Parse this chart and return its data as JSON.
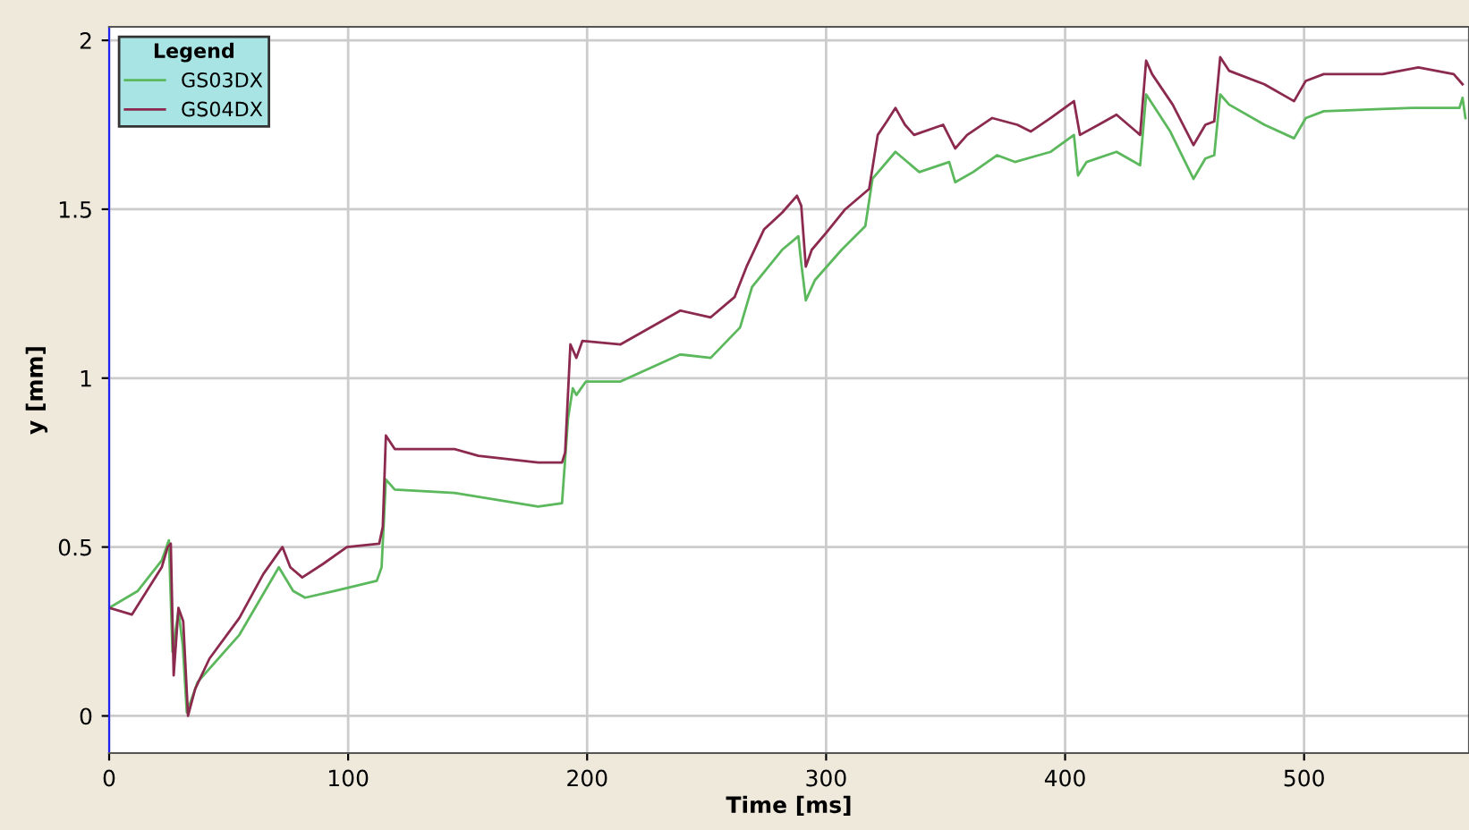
{
  "chart_data": {
    "type": "line",
    "xlabel": "Time [ms]",
    "ylabel": "y [mm]",
    "legend_title": "Legend",
    "legend": "top left",
    "grid": true,
    "xlim": [
      0,
      569
    ],
    "ylim": [
      -0.11,
      2.04
    ],
    "xticks": [
      0,
      100,
      200,
      300,
      400,
      500
    ],
    "yticks": [
      0,
      0.5,
      1,
      1.5,
      2
    ],
    "series": [
      {
        "name": "GS03DX",
        "color": "#5cb85c",
        "x": [
          0,
          12,
          22,
          25,
          26.5,
          29,
          30.8,
          32.5,
          37,
          54.5,
          71,
          77,
          82,
          94.5,
          112,
          114,
          115.8,
          119.5,
          144.5,
          179.5,
          189.5,
          192,
          194,
          195.5,
          199.5,
          214,
          239,
          251.7,
          264,
          269,
          281.6,
          288.4,
          289.6,
          291.5,
          295.3,
          306.5,
          316.4,
          319.4,
          329,
          339,
          351.5,
          354,
          361.5,
          371.5,
          379,
          389,
          394,
          403.7,
          405.4,
          409,
          421.5,
          431.4,
          433.9,
          444,
          453.7,
          458.7,
          462.4,
          464.9,
          468.6,
          483.4,
          495.8,
          500.7,
          508.2,
          545.3,
          565,
          566.3,
          567.5
        ],
        "values": [
          0.32,
          0.37,
          0.46,
          0.52,
          0.19,
          0.31,
          0.21,
          0.01,
          0.1,
          0.24,
          0.44,
          0.37,
          0.35,
          0.37,
          0.4,
          0.44,
          0.7,
          0.67,
          0.66,
          0.62,
          0.63,
          0.88,
          0.97,
          0.95,
          0.99,
          0.99,
          1.07,
          1.06,
          1.15,
          1.27,
          1.38,
          1.42,
          1.34,
          1.23,
          1.29,
          1.38,
          1.45,
          1.59,
          1.67,
          1.61,
          1.64,
          1.58,
          1.61,
          1.66,
          1.64,
          1.66,
          1.67,
          1.72,
          1.6,
          1.64,
          1.67,
          1.63,
          1.84,
          1.73,
          1.59,
          1.65,
          1.66,
          1.84,
          1.81,
          1.75,
          1.71,
          1.77,
          1.79,
          1.8,
          1.8,
          1.83,
          1.77
        ]
      },
      {
        "name": "GS04DX",
        "color": "#8b2a4e",
        "x": [
          0,
          9.5,
          22,
          24.5,
          25.8,
          27,
          29,
          31,
          33,
          36,
          42,
          54.5,
          64.5,
          72.5,
          75.8,
          80.8,
          89.5,
          99.5,
          113,
          114.5,
          115.8,
          119.5,
          129.5,
          144.5,
          154.5,
          179.5,
          189.5,
          190.8,
          193,
          195.5,
          198,
          214,
          239,
          251.7,
          261.7,
          266.7,
          274,
          281.6,
          287.8,
          289.6,
          291.5,
          294,
          300,
          308,
          318,
          321.6,
          325.4,
          329,
          333,
          336.8,
          349,
          354,
          359,
          369.5,
          380,
          385.6,
          394,
          403.7,
          406.2,
          414,
          421.5,
          431.4,
          433.9,
          436.4,
          445,
          453.7,
          458.7,
          462.4,
          464.9,
          468.6,
          483.4,
          495.8,
          500.7,
          508.2,
          532.9,
          547.8,
          562.6,
          566.3
        ],
        "values": [
          0.32,
          0.3,
          0.44,
          0.5,
          0.51,
          0.12,
          0.32,
          0.28,
          0.0,
          0.08,
          0.17,
          0.29,
          0.42,
          0.5,
          0.44,
          0.41,
          0.45,
          0.5,
          0.51,
          0.56,
          0.83,
          0.79,
          0.79,
          0.79,
          0.77,
          0.75,
          0.75,
          0.78,
          1.1,
          1.06,
          1.11,
          1.1,
          1.2,
          1.18,
          1.24,
          1.33,
          1.44,
          1.49,
          1.54,
          1.51,
          1.33,
          1.38,
          1.43,
          1.5,
          1.56,
          1.72,
          1.76,
          1.8,
          1.75,
          1.72,
          1.75,
          1.68,
          1.72,
          1.77,
          1.75,
          1.73,
          1.77,
          1.82,
          1.72,
          1.75,
          1.78,
          1.72,
          1.94,
          1.9,
          1.81,
          1.69,
          1.75,
          1.76,
          1.95,
          1.91,
          1.87,
          1.82,
          1.88,
          1.9,
          1.9,
          1.92,
          1.9,
          1.87
        ]
      }
    ]
  }
}
